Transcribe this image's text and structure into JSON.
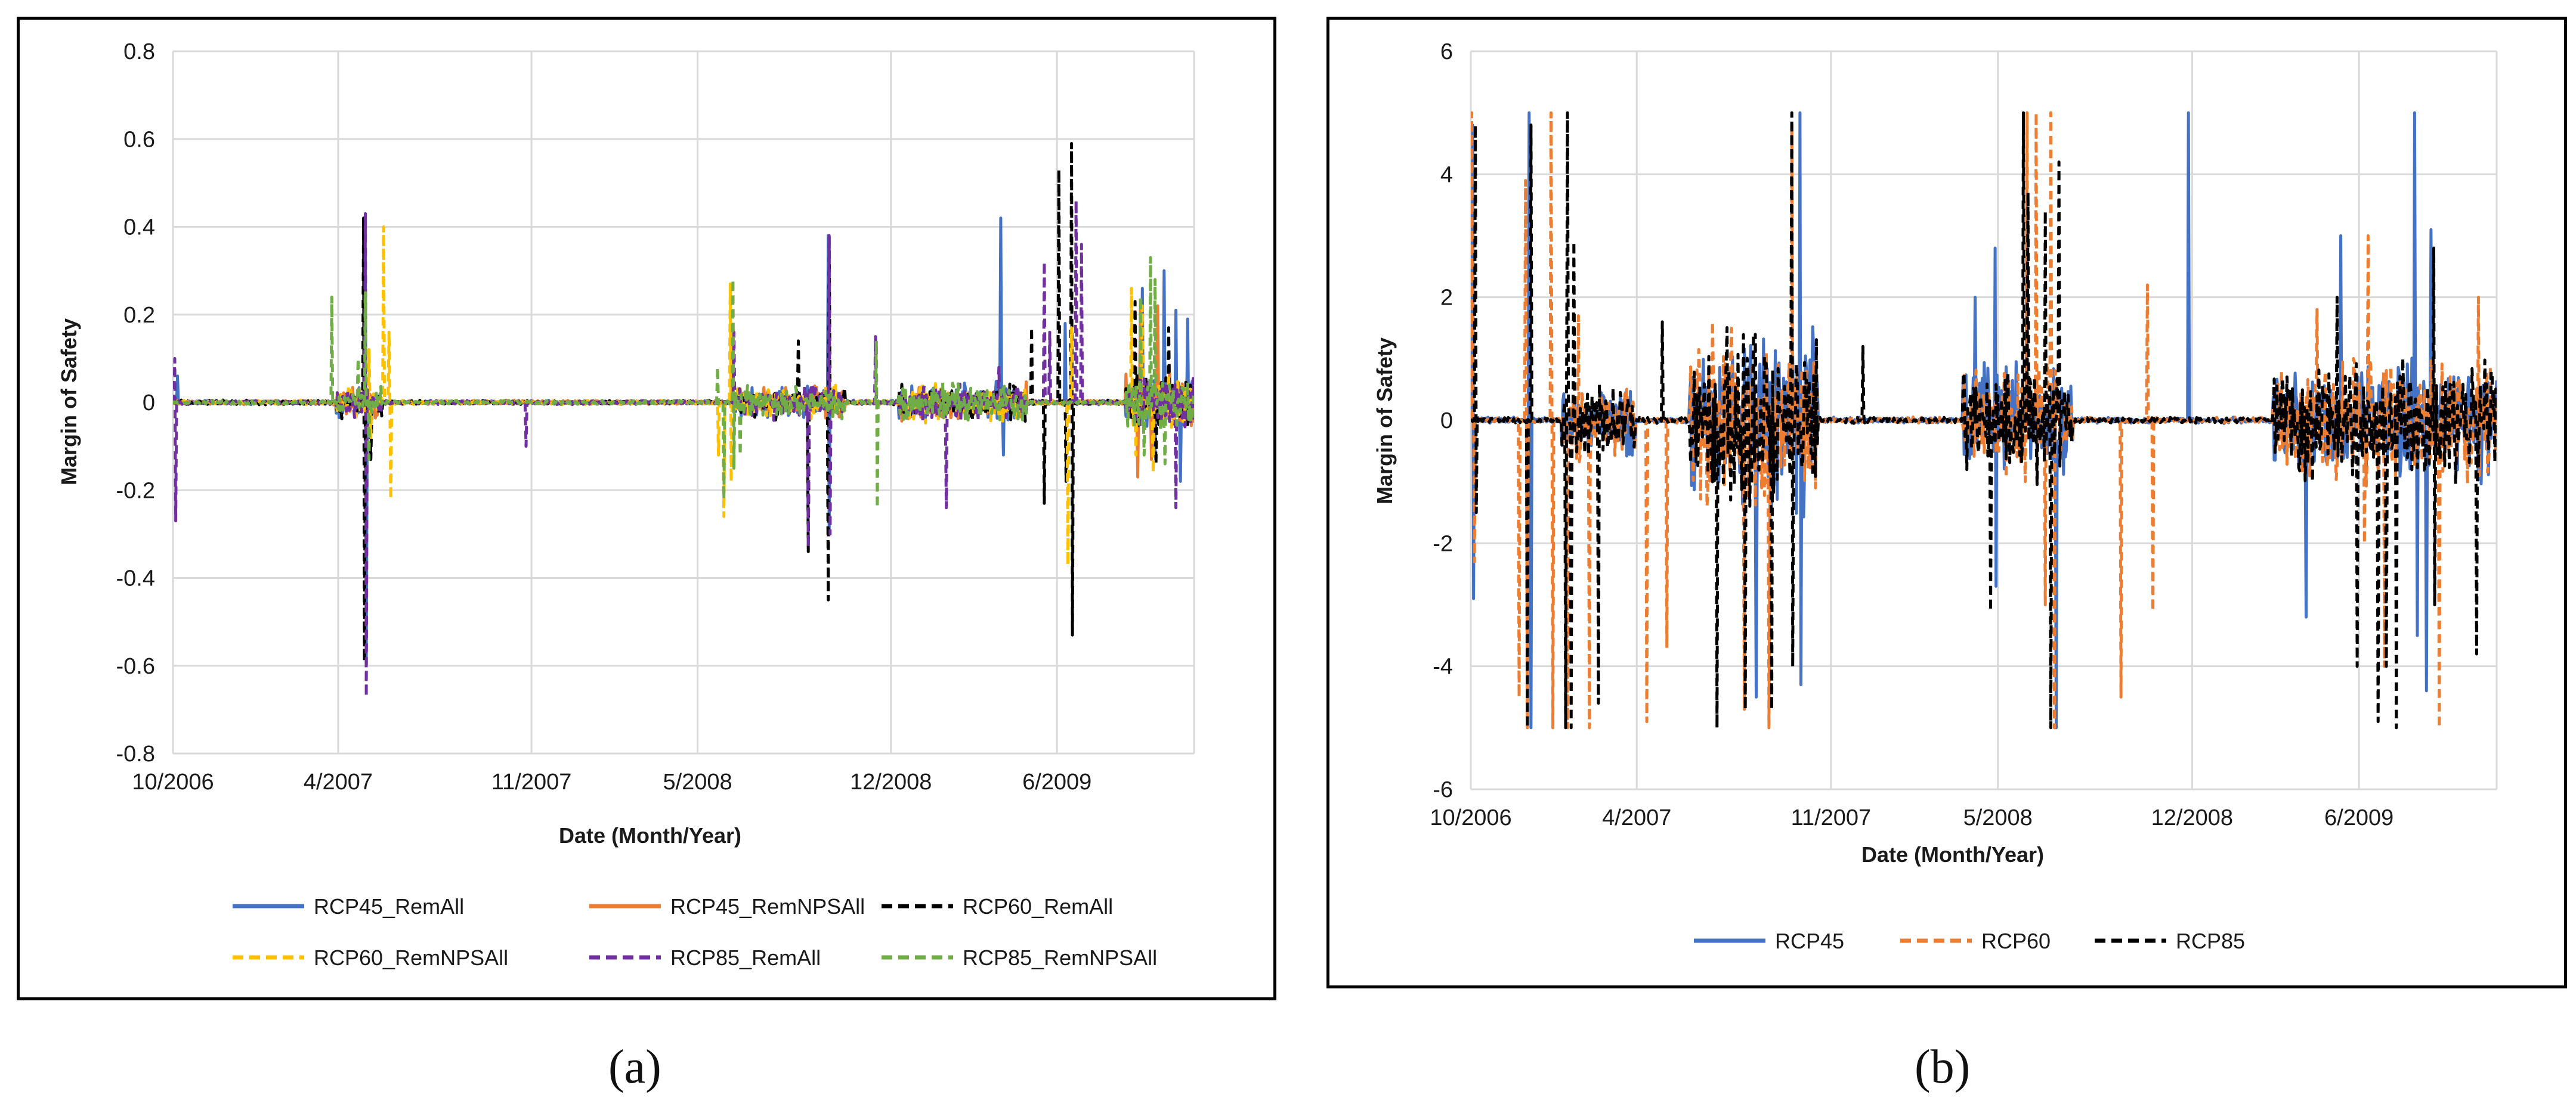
{
  "panels": [
    {
      "id": "a",
      "caption": "(a)",
      "chart_data": {
        "type": "line",
        "title": "",
        "xlabel": "Date (Month/Year)",
        "ylabel": "Margin of Safety",
        "ylim": [
          -0.8,
          0.8
        ],
        "yticks": [
          -0.8,
          -0.6,
          -0.4,
          -0.2,
          0,
          0.2,
          0.4,
          0.6,
          0.8
        ],
        "ytick_labels": [
          "-0.8",
          "-0.6",
          "-0.4",
          "-0.2",
          "0",
          "0.2",
          "0.4",
          "0.6",
          "0.8"
        ],
        "xlim": [
          0,
          1125
        ],
        "xticks": [
          0,
          182,
          395,
          578,
          791,
          974
        ],
        "xtick_labels": [
          "10/2006",
          "4/2007",
          "11/2007",
          "5/2008",
          "12/2008",
          "6/2009"
        ],
        "grid": true,
        "legend_position": "bottom",
        "noise_level": 0.004,
        "active_windows": [
          [
            180,
            230,
            0.03
          ],
          [
            620,
            740,
            0.03
          ],
          [
            800,
            940,
            0.035
          ],
          [
            1050,
            1125,
            0.05
          ]
        ],
        "series": [
          {
            "name": "RCP45_RemAll",
            "color": "#4472C4",
            "dash": "solid",
            "spikes": [
              [
                5,
                0.06
              ],
              [
                212,
                0.35
              ],
              [
                213,
                -0.58
              ],
              [
                722,
                0.38
              ],
              [
                723,
                -0.3
              ],
              [
                912,
                0.42
              ],
              [
                915,
                -0.12
              ],
              [
                983,
                0.18
              ],
              [
                1068,
                0.26
              ],
              [
                1082,
                -0.12
              ],
              [
                1092,
                0.3
              ],
              [
                1105,
                0.21
              ],
              [
                1110,
                -0.18
              ],
              [
                1118,
                0.19
              ]
            ]
          },
          {
            "name": "RCP45_RemNPSAll",
            "color": "#ED7D31",
            "dash": "solid",
            "spikes": [
              [
                1063,
                -0.17
              ],
              [
                1066,
                0.22
              ],
              [
                1078,
                -0.13
              ],
              [
                1085,
                0.22
              ]
            ]
          },
          {
            "name": "RCP60_RemAll",
            "color": "#000000",
            "dash": "dash",
            "spikes": [
              [
                210,
                0.42
              ],
              [
                211,
                -0.59
              ],
              [
                218,
                -0.13
              ],
              [
                689,
                0.14
              ],
              [
                700,
                -0.34
              ],
              [
                722,
                -0.45
              ],
              [
                723,
                0.38
              ],
              [
                946,
                0.17
              ],
              [
                960,
                -0.23
              ],
              [
                976,
                0.53
              ],
              [
                984,
                -0.18
              ],
              [
                990,
                0.59
              ],
              [
                991,
                -0.53
              ],
              [
                1060,
                0.23
              ],
              [
                1083,
                -0.14
              ],
              [
                1097,
                0.17
              ]
            ]
          },
          {
            "name": "RCP60_RemNPSAll",
            "color": "#FFC000",
            "dash": "dash",
            "spikes": [
              [
                216,
                0.12
              ],
              [
                218,
                -0.08
              ],
              [
                232,
                0.4
              ],
              [
                238,
                0.16
              ],
              [
                240,
                -0.22
              ],
              [
                601,
                -0.12
              ],
              [
                607,
                -0.26
              ],
              [
                614,
                0.27
              ],
              [
                615,
                -0.18
              ],
              [
                986,
                -0.37
              ],
              [
                990,
                0.17
              ],
              [
                1056,
                0.26
              ],
              [
                1061,
                -0.12
              ],
              [
                1068,
                0.22
              ],
              [
                1080,
                -0.16
              ]
            ]
          },
          {
            "name": "RCP85_RemAll",
            "color": "#7030A0",
            "dash": "dash",
            "spikes": [
              [
                2,
                0.1
              ],
              [
                3,
                -0.27
              ],
              [
                212,
                0.43
              ],
              [
                213,
                -0.67
              ],
              [
                389,
                -0.1
              ],
              [
                618,
                0.16
              ],
              [
                700,
                -0.33
              ],
              [
                723,
                0.38
              ],
              [
                724,
                -0.3
              ],
              [
                774,
                0.15
              ],
              [
                852,
                -0.24
              ],
              [
                910,
                0.08
              ],
              [
                960,
                0.32
              ],
              [
                966,
                0.16
              ],
              [
                995,
                0.46
              ],
              [
                1001,
                0.36
              ],
              [
                1105,
                -0.24
              ]
            ]
          },
          {
            "name": "RCP85_RemNPSAll",
            "color": "#70AD47",
            "dash": "dash",
            "spikes": [
              [
                175,
                0.24
              ],
              [
                204,
                0.1
              ],
              [
                212,
                0.25
              ],
              [
                216,
                -0.13
              ],
              [
                600,
                0.08
              ],
              [
                607,
                -0.22
              ],
              [
                617,
                0.28
              ],
              [
                618,
                -0.15
              ],
              [
                625,
                -0.12
              ],
              [
                775,
                0.14
              ],
              [
                776,
                -0.24
              ],
              [
                1066,
                0.24
              ],
              [
                1070,
                -0.12
              ],
              [
                1077,
                0.33
              ],
              [
                1082,
                0.28
              ],
              [
                1093,
                -0.14
              ]
            ]
          }
        ]
      },
      "legend_rows": [
        [
          "RCP45_RemAll",
          "RCP45_RemNPSAll",
          "RCP60_RemAll"
        ],
        [
          "RCP60_RemNPSAll",
          "RCP85_RemAll",
          "RCP85_RemNPSAll"
        ]
      ]
    },
    {
      "id": "b",
      "caption": "(b)",
      "chart_data": {
        "type": "line",
        "title": "",
        "xlabel": "Date (Month/Year)",
        "ylabel": "Margin of Safety",
        "ylim": [
          -6,
          6
        ],
        "yticks": [
          -6,
          -4,
          -2,
          0,
          2,
          4,
          6
        ],
        "ytick_labels": [
          "-6",
          "-4",
          "-2",
          "0",
          "2",
          "4",
          "6"
        ],
        "xlim": [
          0,
          1125
        ],
        "xticks": [
          0,
          182,
          395,
          578,
          791,
          974
        ],
        "xtick_labels": [
          "10/2006",
          "4/2007",
          "11/2007",
          "5/2008",
          "12/2008",
          "6/2009"
        ],
        "grid": true,
        "legend_position": "bottom",
        "noise_level": 0.04,
        "active_windows": [
          [
            100,
            180,
            0.5
          ],
          [
            240,
            380,
            1.2
          ],
          [
            540,
            660,
            0.8
          ],
          [
            880,
            1125,
            0.8
          ]
        ],
        "series": [
          {
            "name": "RCP45",
            "color": "#4472C4",
            "dash": "solid",
            "spikes": [
              [
                2,
                4.8
              ],
              [
                3,
                -2.9
              ],
              [
                64,
                5.0
              ],
              [
                66,
                -5.0
              ],
              [
                313,
                -4.5
              ],
              [
                361,
                5.0
              ],
              [
                362,
                -4.3
              ],
              [
                553,
                2.0
              ],
              [
                575,
                2.8
              ],
              [
                576,
                -2.7
              ],
              [
                642,
                -5.0
              ],
              [
                787,
                5.0
              ],
              [
                916,
                -3.2
              ],
              [
                954,
                3.0
              ],
              [
                1035,
                5.0
              ],
              [
                1038,
                -3.5
              ],
              [
                1048,
                -4.4
              ],
              [
                1053,
                3.1
              ]
            ]
          },
          {
            "name": "RCP60",
            "color": "#ED7D31",
            "dash": "dash",
            "spikes": [
              [
                1,
                5.0
              ],
              [
                4,
                -2.3
              ],
              [
                53,
                -4.5
              ],
              [
                60,
                3.9
              ],
              [
                62,
                -5.0
              ],
              [
                88,
                5.0
              ],
              [
                90,
                -5.0
              ],
              [
                106,
                -5.0
              ],
              [
                118,
                1.7
              ],
              [
                130,
                -5.0
              ],
              [
                193,
                -4.9
              ],
              [
                215,
                -3.7
              ],
              [
                265,
                1.6
              ],
              [
                300,
                -4.7
              ],
              [
                327,
                -5.0
              ],
              [
                352,
                4.8
              ],
              [
                610,
                5.0
              ],
              [
                620,
                5.0
              ],
              [
                630,
                -3.0
              ],
              [
                636,
                5.0
              ],
              [
                640,
                -5.0
              ],
              [
                713,
                -4.5
              ],
              [
                742,
                2.2
              ],
              [
                748,
                -3.1
              ],
              [
                928,
                1.8
              ],
              [
                980,
                -2.0
              ],
              [
                984,
                3.0
              ],
              [
                1002,
                -4.0
              ],
              [
                1062,
                -5.0
              ],
              [
                1105,
                2.0
              ]
            ]
          },
          {
            "name": "RCP85",
            "color": "#000000",
            "dash": "dash",
            "spikes": [
              [
                5,
                4.8
              ],
              [
                6,
                -1.5
              ],
              [
                62,
                -5.0
              ],
              [
                66,
                4.8
              ],
              [
                104,
                -5.0
              ],
              [
                106,
                5.0
              ],
              [
                110,
                -5.0
              ],
              [
                113,
                2.9
              ],
              [
                140,
                -4.6
              ],
              [
                210,
                1.6
              ],
              [
                270,
                -5.0
              ],
              [
                301,
                -4.7
              ],
              [
                310,
                1.4
              ],
              [
                330,
                -4.7
              ],
              [
                352,
                5.0
              ],
              [
                353,
                -4.0
              ],
              [
                430,
                1.2
              ],
              [
                570,
                -3.1
              ],
              [
                606,
                5.0
              ],
              [
                611,
                3.7
              ],
              [
                630,
                3.4
              ],
              [
                636,
                -5.0
              ],
              [
                645,
                4.2
              ],
              [
                950,
                2.0
              ],
              [
                972,
                -4.0
              ],
              [
                995,
                -4.9
              ],
              [
                1004,
                -4.0
              ],
              [
                1015,
                -5.0
              ],
              [
                1056,
                2.8
              ],
              [
                1057,
                -3.0
              ],
              [
                1103,
                -3.8
              ]
            ]
          }
        ]
      },
      "legend_rows": [
        [
          "RCP45",
          "RCP60",
          "RCP85"
        ]
      ]
    }
  ]
}
